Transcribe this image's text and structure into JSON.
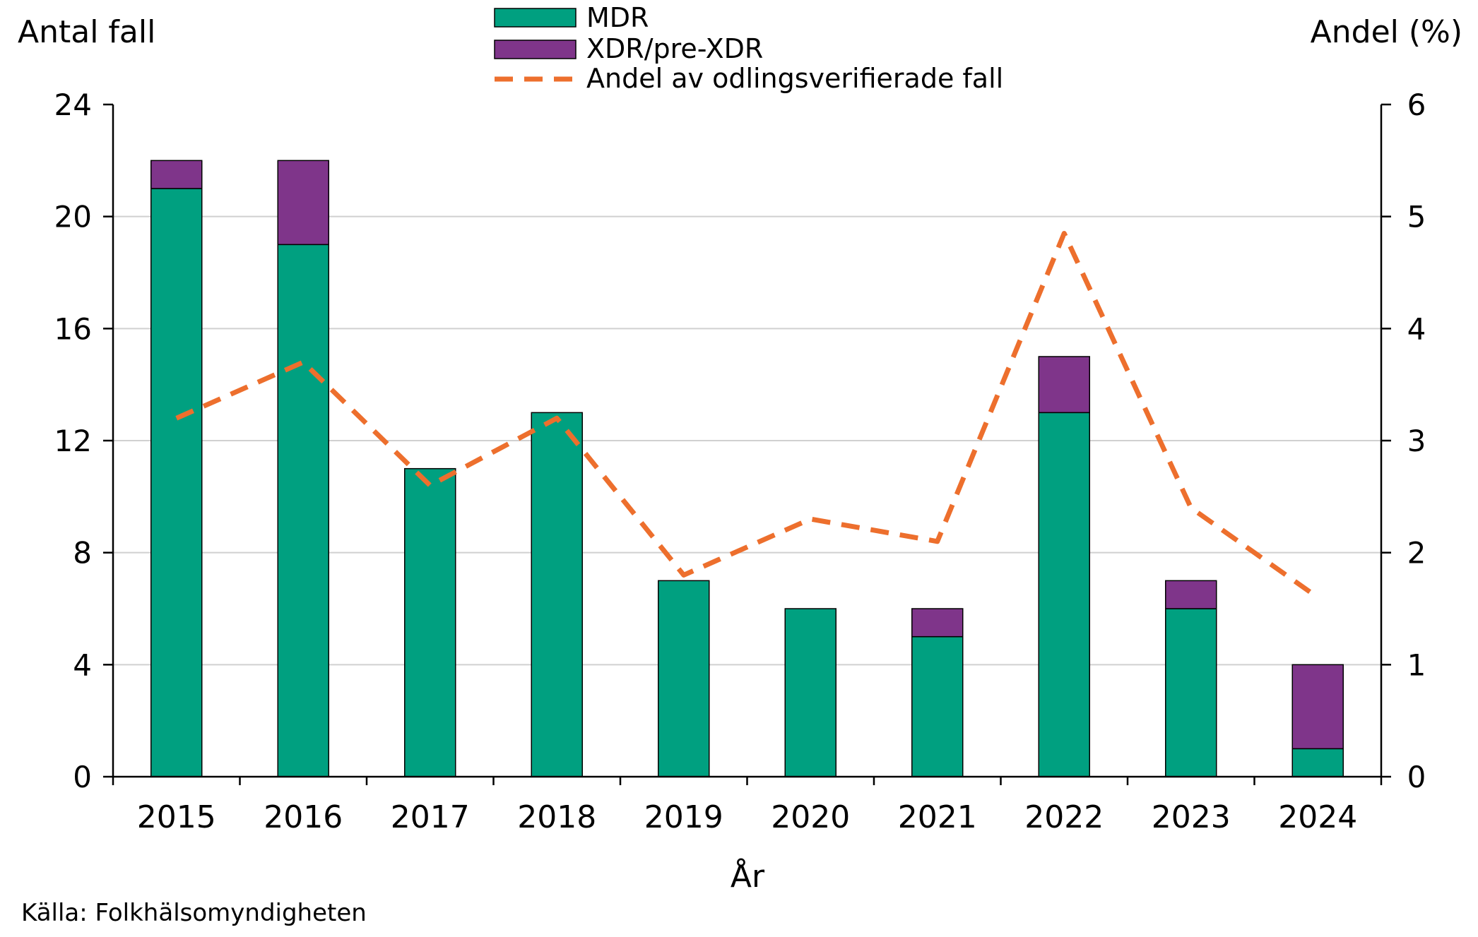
{
  "chart_data": {
    "type": "bar",
    "stacked": true,
    "categories": [
      "2015",
      "2016",
      "2017",
      "2018",
      "2019",
      "2020",
      "2021",
      "2022",
      "2023",
      "2024"
    ],
    "series": [
      {
        "name": "MDR",
        "axis": "left",
        "color": "#00A080",
        "values": [
          21,
          19,
          11,
          13,
          7,
          6,
          5,
          13,
          6,
          1
        ]
      },
      {
        "name": "XDR/pre-XDR",
        "axis": "left",
        "color": "#7F358A",
        "values": [
          1,
          3,
          0,
          0,
          0,
          0,
          1,
          2,
          1,
          3
        ]
      }
    ],
    "line_series": {
      "name": "Andel av odlingsverifierade fall",
      "axis": "right",
      "style": "dashed",
      "color": "#ED6F2D",
      "values": [
        3.2,
        3.7,
        2.6,
        3.2,
        1.8,
        2.3,
        2.1,
        4.85,
        2.4,
        1.6
      ]
    },
    "left_axis": {
      "label": "Antal fall",
      "min": 0,
      "max": 24,
      "ticks": [
        0,
        4,
        8,
        12,
        16,
        20,
        24
      ]
    },
    "right_axis": {
      "label": "Andel (%)",
      "min": 0,
      "max": 6,
      "ticks": [
        0,
        1,
        2,
        3,
        4,
        5,
        6
      ]
    },
    "xlabel": "År",
    "legend_position": "top-center",
    "grid": "horizontal",
    "source_note": "Källa: Folkhälsomyndigheten"
  }
}
